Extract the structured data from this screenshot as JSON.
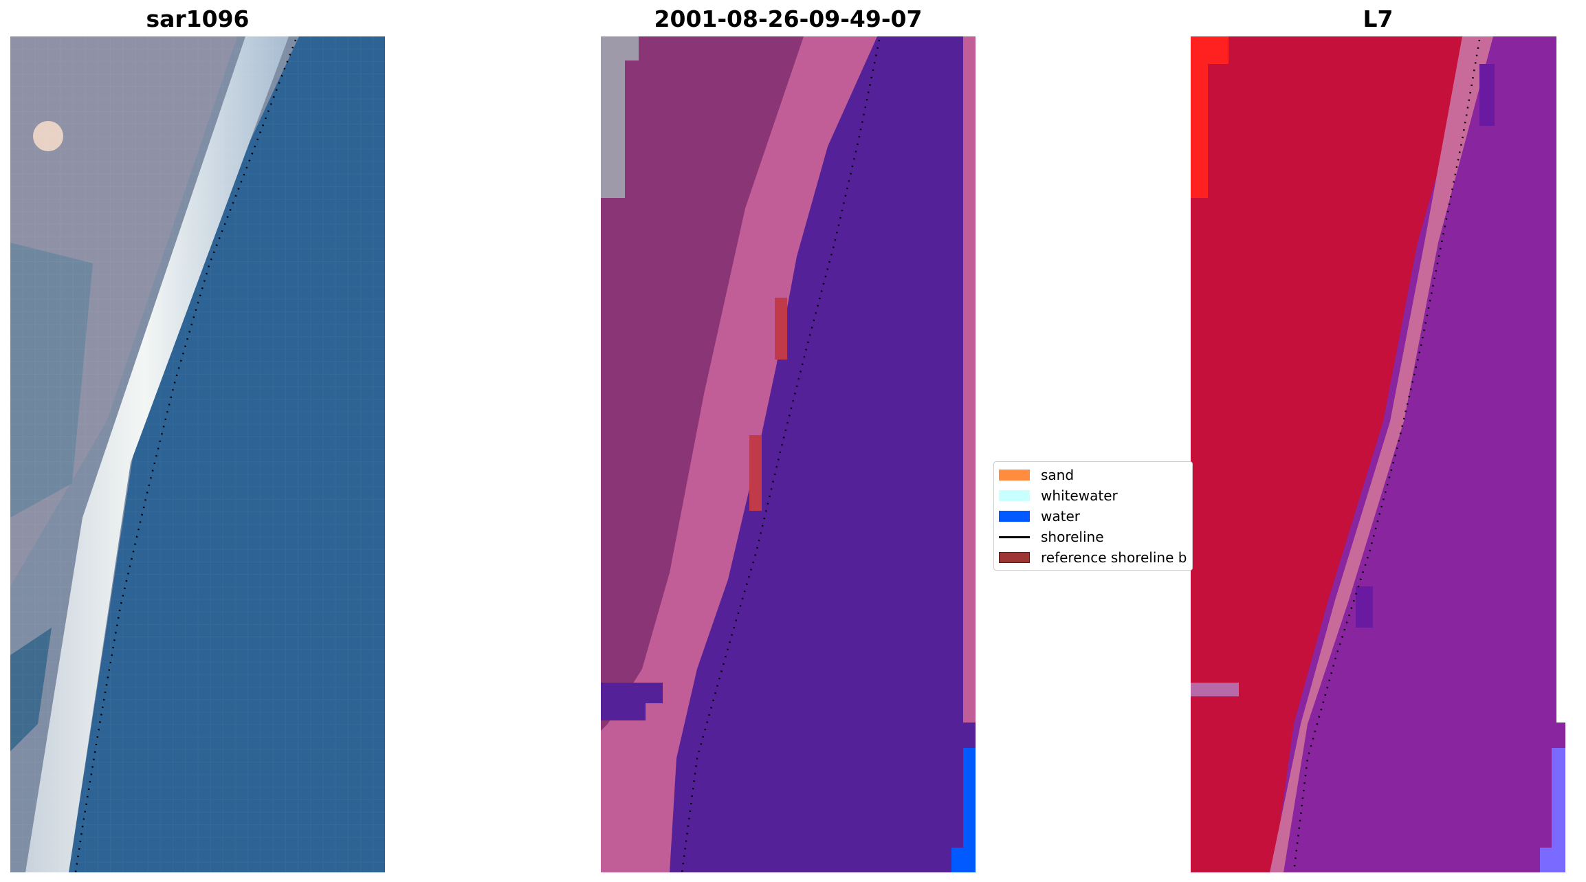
{
  "panels": [
    {
      "title": "sar1096",
      "image": "rgb-composite"
    },
    {
      "title": "2001-08-26-09-49-07",
      "image": "classified-image"
    },
    {
      "title": "L7",
      "image": "false-color-composite"
    }
  ],
  "legend": {
    "items": [
      {
        "label": "sand",
        "color": "#ff8c3f",
        "kind": "patch"
      },
      {
        "label": "whitewater",
        "color": "#c8ffff",
        "kind": "patch"
      },
      {
        "label": "water",
        "color": "#005aff",
        "kind": "patch"
      },
      {
        "label": "shoreline",
        "color": "#000000",
        "kind": "line"
      },
      {
        "label": "reference shoreline b",
        "color": "#9e3535",
        "kind": "patch"
      }
    ]
  },
  "colors": {
    "water_class": "#542199",
    "land_class": "#8a3576",
    "beach_class": "#c15d97",
    "rgb_water": "#2e6395",
    "rgb_land": "#8a8ea0",
    "rgb_beach": "#f3f6f4",
    "nir_land": "#c4103a",
    "nir_water": "#8a25a0"
  }
}
